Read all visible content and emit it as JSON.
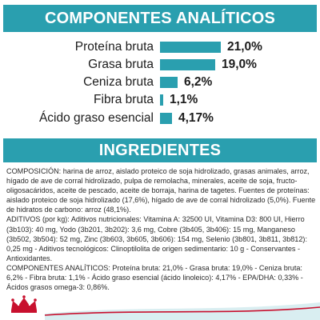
{
  "colors": {
    "accent": "#2a9faf",
    "text": "#1c1c1c",
    "brand_red": "#c8102e"
  },
  "analytic": {
    "title": "COMPONENTES ANALÍTICOS",
    "rows": [
      {
        "label": "Proteína bruta",
        "value": "21,0%",
        "level_pct": 21.0
      },
      {
        "label": "Grasa bruta",
        "value": "19,0%",
        "level_pct": 19.0
      },
      {
        "label": "Ceniza bruta",
        "value": "6,2%",
        "level_pct": 6.2
      },
      {
        "label": "Fibra bruta",
        "value": "1,1%",
        "level_pct": 1.1
      },
      {
        "label": "Ácido graso esencial",
        "value": "4,17%",
        "level_pct": 4.17
      }
    ]
  },
  "ingredients": {
    "title": "INGREDIENTES",
    "paragraphs": [
      "COMPOSICIÓN: harina de arroz, aislado proteico de soja hidrolizado, grasas animales, arroz, hígado de ave de corral hidrolizado, pulpa de remolacha, minerales, aceite de soja, fructo-oligosacáridos, aceite de pescado, aceite de borraja, harina de tagetes. Fuentes de proteínas: aislado proteico de soja hidrolizado (17,6%), hígado de ave de corral hidrolizado (5,0%). Fuente de hidratos de carbono: arroz (48,1%).",
      "ADITIVOS (por kg): Aditivos nutricionales: Vitamina A: 32500 UI, Vitamina D3: 800 UI, Hierro (3b103): 40 mg, Yodo (3b201, 3b202): 3,6 mg, Cobre (3b405, 3b406): 15 mg, Manganeso (3b502, 3b504): 52 mg, Zinc (3b603, 3b605, 3b606): 154 mg, Selenio (3b801, 3b811, 3b812): 0,25 mg - Aditivos tecnológicos: Clinoptilolita de origen sedimentario: 10 g - Conservantes - Antioxidantes.",
      "COMPONENTES ANALÍTICOS: Proteína bruta: 21,0% - Grasa bruta: 19,0% - Ceniza bruta: 6,2% - Fibra bruta: 1,1% - Ácido graso esencial (ácido linoleico): 4,17% - EPA/DHA: 0,33% - Ácidos grasos omega-3: 0,86%."
    ]
  },
  "brand": {
    "logo_icon": "crown-logo-icon"
  }
}
